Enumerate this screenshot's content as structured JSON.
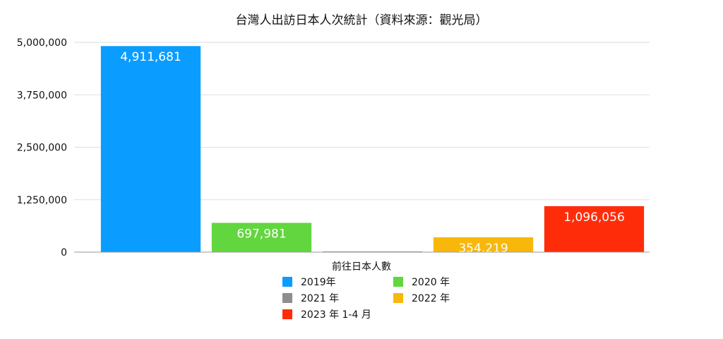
{
  "chart_data": {
    "type": "bar",
    "title": "台灣人出訪日本人次統計（資料來源：觀光局）",
    "xlabel": "",
    "ylabel": "",
    "ylim": [
      0,
      5000000
    ],
    "y_ticks": [
      0,
      1250000,
      2500000,
      3750000,
      5000000
    ],
    "y_tick_labels": [
      "0",
      "1,250,000",
      "2,500,000",
      "3,750,000",
      "5,000,000"
    ],
    "grid": true,
    "legend_position": "bottom",
    "legend_title": "前往日本人數",
    "categories": [
      "2019年",
      "2020 年",
      "2021 年",
      "2022 年",
      "2023 年 1-4 月"
    ],
    "values": [
      4911681,
      697981,
      10056,
      354219,
      1096056
    ],
    "data_labels": [
      "4,911,681",
      "697,981",
      "",
      "354,219",
      "1,096,056"
    ],
    "colors": [
      "#0a9dff",
      "#62d63e",
      "#8e8e8e",
      "#f8b80b",
      "#ff2c0a"
    ]
  }
}
